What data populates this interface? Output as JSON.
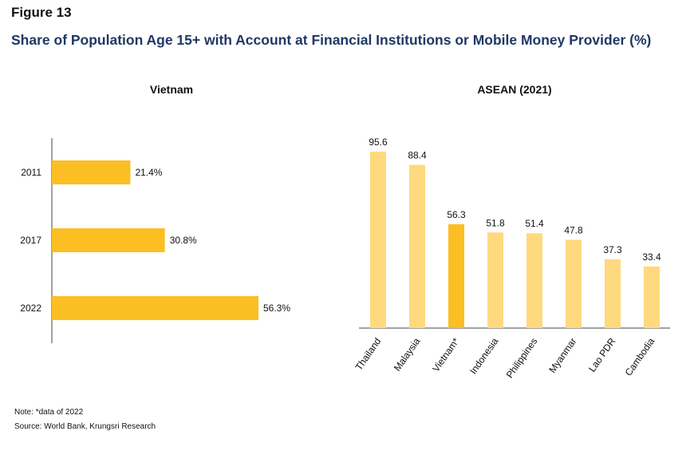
{
  "figure_label": "Figure 13",
  "title": "Share of Population Age 15+ with Account at Financial Institutions or Mobile Money Provider (%)",
  "note": "Note: *data of 2022",
  "source": "Source: World Bank, Krungsri Research",
  "chart_data": [
    {
      "type": "bar",
      "orientation": "horizontal",
      "title": "Vietnam",
      "categories": [
        "2011",
        "2017",
        "2022"
      ],
      "values": [
        21.4,
        30.8,
        56.3
      ],
      "value_labels": [
        "21.4%",
        "30.8%",
        "56.3%"
      ],
      "xlim": [
        0,
        60
      ],
      "grid": false,
      "bar_color": "#fbbf24"
    },
    {
      "type": "bar",
      "orientation": "vertical",
      "title": "ASEAN (2021)",
      "categories": [
        "Thailand",
        "Malaysia",
        "Vietnam*",
        "Indonesia",
        "Philippines",
        "Myanmar",
        "Lao PDR",
        "Cambodia"
      ],
      "values": [
        95.6,
        88.4,
        56.3,
        51.8,
        51.4,
        47.8,
        37.3,
        33.4
      ],
      "value_labels": [
        "95.6",
        "88.4",
        "56.3",
        "51.8",
        "51.4",
        "47.8",
        "37.3",
        "33.4"
      ],
      "highlight": "Vietnam*",
      "ylim": [
        0,
        100
      ],
      "grid": false,
      "bar_color": "#ffd97d",
      "highlight_color": "#fbbf24"
    }
  ]
}
